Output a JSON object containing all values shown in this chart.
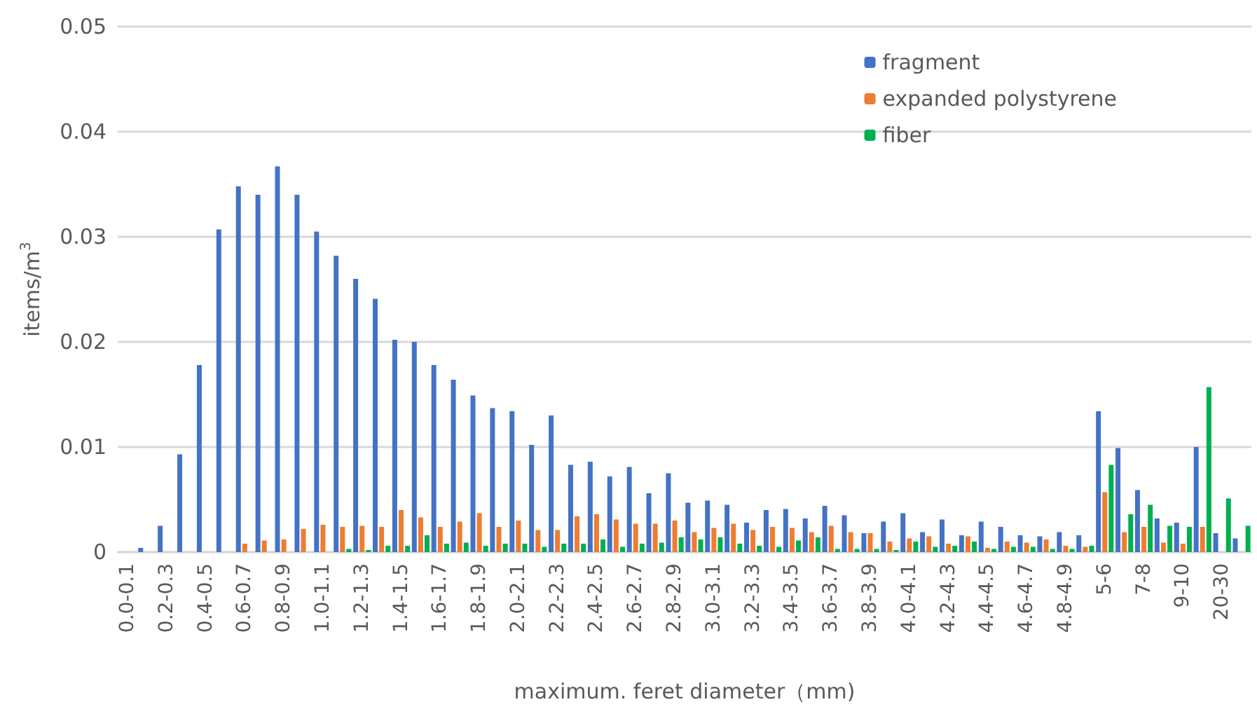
{
  "chart_data": {
    "type": "bar",
    "xlabel": "maximum. feret diameter（mm)",
    "ylabel": "items/m$^{3}$",
    "categories": [
      "0.0-0.1",
      null,
      "0.2-0.3",
      null,
      "0.4-0.5",
      null,
      "0.6-0.7",
      null,
      "0.8-0.9",
      null,
      "1.0-1.1",
      null,
      "1.2-1.3",
      null,
      "1.4-1.5",
      null,
      "1.6-1.7",
      null,
      "1.8-1.9",
      null,
      "2.0-2.1",
      null,
      "2.2-2.3",
      null,
      "2.4-2.5",
      null,
      "2.6-2.7",
      null,
      "2.8-2.9",
      null,
      "3.0-3.1",
      null,
      "3.2-3.3",
      null,
      "3.4-3.5",
      null,
      "3.6-3.7",
      null,
      "3.8-3.9",
      null,
      "4.0-4.1",
      null,
      "4.2-4.3",
      null,
      "4.4-4.5",
      null,
      "4.6-4.7",
      null,
      "4.8-4.9",
      null,
      "5-6",
      null,
      "7-8",
      null,
      "9-10",
      null,
      "20-30",
      null
    ],
    "series": [
      {
        "name": "fragment",
        "color": "#4472c4",
        "values": [
          0,
          0.0004,
          0.0025,
          0.0093,
          0.0178,
          0.0307,
          0.0348,
          0.034,
          0.0367,
          0.034,
          0.0305,
          0.0282,
          0.026,
          0.0241,
          0.0202,
          0.02,
          0.0178,
          0.0164,
          0.0149,
          0.0137,
          0.0134,
          0.0102,
          0.013,
          0.0083,
          0.0086,
          0.0072,
          0.0081,
          0.0056,
          0.0075,
          0.0047,
          0.0049,
          0.0045,
          0.0028,
          0.004,
          0.0041,
          0.0032,
          0.0044,
          0.0035,
          0.0018,
          0.0029,
          0.0037,
          0.0019,
          0.0031,
          0.0016,
          0.0029,
          0.0024,
          0.0016,
          0.0015,
          0.0019,
          0.0016,
          0.0134,
          0.0099,
          0.0059,
          0.0032,
          0.0028,
          0.01,
          0.0018,
          0.0013
        ]
      },
      {
        "name": "expanded polystyrene",
        "color": "#ed7d31",
        "values": [
          0,
          0,
          0,
          0,
          0,
          0,
          0.0008,
          0.0011,
          0.0012,
          0.0022,
          0.0026,
          0.0024,
          0.0025,
          0.0024,
          0.004,
          0.0033,
          0.0024,
          0.0029,
          0.0037,
          0.0024,
          0.003,
          0.0021,
          0.0021,
          0.0034,
          0.0036,
          0.0031,
          0.0027,
          0.0027,
          0.003,
          0.0019,
          0.0023,
          0.0027,
          0.0021,
          0.0024,
          0.0023,
          0.0019,
          0.0025,
          0.0019,
          0.0018,
          0.001,
          0.0013,
          0.0015,
          0.0008,
          0.0015,
          0.0004,
          0.001,
          0.0009,
          0.0012,
          0.0006,
          0.0005,
          0.0057,
          0.0019,
          0.0024,
          0.0009,
          0.0008,
          0.0024,
          0,
          0
        ]
      },
      {
        "name": "fiber",
        "color": "#00b050",
        "values": [
          0,
          0,
          0,
          0,
          0,
          0,
          0,
          0,
          0,
          0,
          0,
          0.0003,
          0.0002,
          0.0006,
          0.0006,
          0.0016,
          0.0008,
          0.0009,
          0.0006,
          0.0008,
          0.0008,
          0.0005,
          0.0008,
          0.0008,
          0.0012,
          0.0005,
          0.0008,
          0.0009,
          0.0014,
          0.0012,
          0.0014,
          0.0008,
          0.0006,
          0.0005,
          0.0011,
          0.0014,
          0.0003,
          0.0003,
          0.0003,
          0.0002,
          0.001,
          0.0005,
          0.0006,
          0.001,
          0.0003,
          0.0005,
          0.0005,
          0.0003,
          0.0003,
          0.0006,
          0.0083,
          0.0036,
          0.0045,
          0.0025,
          0.0024,
          0.0157,
          0.0051,
          0.0025
        ]
      }
    ],
    "ylim": [
      0,
      0.05
    ],
    "yticks": [
      0,
      0.01,
      0.02,
      0.03,
      0.04,
      0.05
    ],
    "grid": "y",
    "legend": "top right"
  }
}
